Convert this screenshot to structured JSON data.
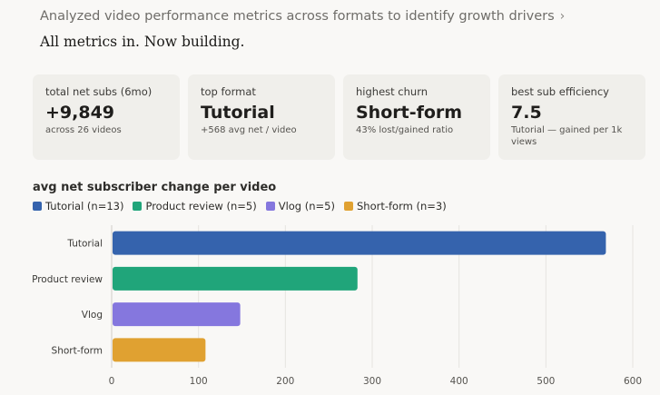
{
  "header": {
    "summary": "Analyzed video performance metrics across formats to identify growth drivers",
    "chevron": "chevron-right-icon"
  },
  "status_text": "All metrics in. Now building.",
  "cards": [
    {
      "label": "total net subs (6mo)",
      "value": "+9,849",
      "sub": "across 26 videos"
    },
    {
      "label": "top format",
      "value": "Tutorial",
      "sub": "+568 avg net / video"
    },
    {
      "label": "highest churn",
      "value": "Short-form",
      "sub": "43% lost/gained ratio"
    },
    {
      "label": "best sub efficiency",
      "value": "7.5",
      "sub": "Tutorial — gained per 1k views"
    }
  ],
  "chart_data": {
    "type": "bar",
    "orientation": "horizontal",
    "title": "avg net subscriber change per video",
    "categories": [
      "Tutorial",
      "Product review",
      "Vlog",
      "Short-form"
    ],
    "values": [
      568,
      282,
      147,
      107
    ],
    "legend": [
      "Tutorial (n=13)",
      "Product review (n=5)",
      "Vlog (n=5)",
      "Short-form (n=3)"
    ],
    "colors": [
      "#3563ad",
      "#20a57a",
      "#8577de",
      "#e0a131"
    ],
    "xlim": [
      0,
      600
    ],
    "xticks": [
      "0",
      "100",
      "200",
      "300",
      "400",
      "500",
      "600"
    ],
    "grid": true,
    "legend_position": "top-left"
  }
}
